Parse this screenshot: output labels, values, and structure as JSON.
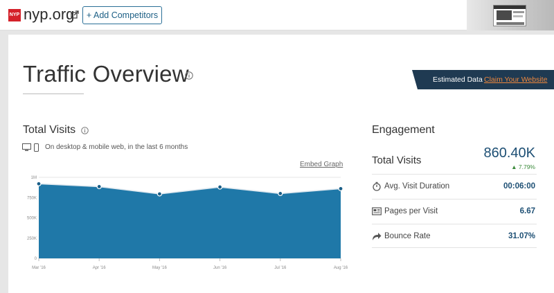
{
  "header": {
    "favicon_text": "NYP",
    "site_name": "nyp.org",
    "add_competitors_label": "+ Add Competitors"
  },
  "traffic": {
    "title": "Traffic Overview"
  },
  "banner": {
    "estimated_label": "Estimated Data",
    "claim_link": "Claim Your Website"
  },
  "total_visits": {
    "title": "Total Visits",
    "device_text": "On desktop & mobile web, in the last 6 months",
    "embed_link": "Embed Graph"
  },
  "chart_data": {
    "type": "area",
    "title": "",
    "categories": [
      "Mar '16",
      "Apr '16",
      "May '16",
      "Jun '16",
      "Jul '16",
      "Aug '16"
    ],
    "values": [
      920000,
      885000,
      795000,
      880000,
      800000,
      860000
    ],
    "ylim": [
      0,
      1000000
    ],
    "y_ticks": [
      0,
      250000,
      500000,
      750000,
      1000000
    ],
    "y_tick_labels": [
      "0",
      "250K",
      "500K",
      "750K",
      "1M"
    ],
    "grid": true,
    "fill_color": "#1f78a8",
    "line_color": "#1b5f88"
  },
  "engagement": {
    "title": "Engagement",
    "total_visits_label": "Total Visits",
    "total_visits_value": "860.40K",
    "total_visits_change": "7.79%",
    "metrics": [
      {
        "label": "Avg. Visit Duration",
        "value": "00:06:00",
        "icon": "stopwatch-icon"
      },
      {
        "label": "Pages per Visit",
        "value": "6.67",
        "icon": "pages-icon"
      },
      {
        "label": "Bounce Rate",
        "value": "31.07%",
        "icon": "bounce-arrow-icon"
      }
    ]
  },
  "colors": {
    "accent": "#1d4f74",
    "banner_bg": "#1f3a52",
    "link_orange": "#f0883d",
    "positive": "#3a8a3a"
  }
}
